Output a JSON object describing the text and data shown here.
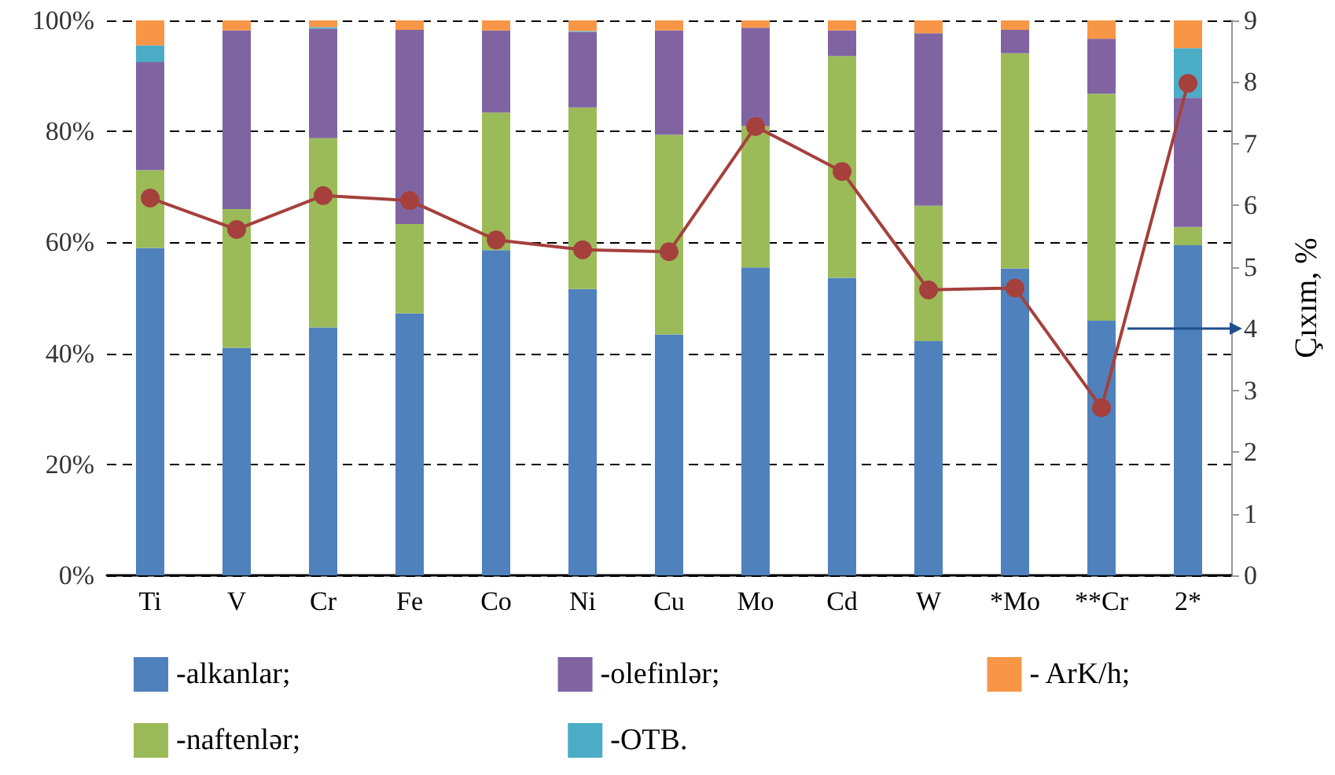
{
  "chart_data": {
    "type": "bar",
    "stacked": true,
    "y2label": "Çıxım, %",
    "categories": [
      "Ti",
      "V",
      "Cr",
      "Fe",
      "Co",
      "Ni",
      "Cu",
      "Mo",
      "Cd",
      "W",
      "*Mo",
      "**Cr",
      "2*"
    ],
    "series": [
      {
        "name": "-alkanlar;",
        "color": "#4f81bd",
        "values": [
          59,
          41,
          44.7,
          47.2,
          58.6,
          51.6,
          43.4,
          55.5,
          53.6,
          42.2,
          55.3,
          45.9,
          59.5
        ]
      },
      {
        "name": "-naftenlər;",
        "color": "#9bbb59",
        "values": [
          14,
          25,
          34.1,
          16.1,
          24.8,
          32.7,
          36,
          25.5,
          40,
          24.4,
          38.8,
          40.9,
          3.3
        ]
      },
      {
        "name": "-olefinlər;",
        "color": "#8064a2",
        "values": [
          19.5,
          32.2,
          19.7,
          35,
          14.8,
          13.6,
          18.8,
          17.7,
          4.6,
          31.1,
          4.2,
          9.9,
          23.3
        ]
      },
      {
        "name": "-OTB.",
        "color": "#4bacc6",
        "values": [
          3,
          0,
          0.3,
          0,
          0,
          0.2,
          0,
          0,
          0,
          0,
          0,
          0,
          8.9
        ]
      },
      {
        "name": "- ArK/h;",
        "color": "#f79646",
        "values": [
          4.5,
          1.8,
          1.2,
          1.7,
          1.8,
          1.9,
          1.8,
          1.3,
          1.8,
          2.3,
          1.7,
          3.3,
          5.0
        ]
      },
      {
        "type": "line",
        "axis": "y2",
        "color": "#a5403c",
        "marker": "circle",
        "values": [
          6.12,
          5.61,
          6.16,
          6.08,
          5.44,
          5.28,
          5.25,
          7.28,
          6.55,
          4.63,
          4.66,
          2.72,
          7.98
        ]
      }
    ],
    "ylim": [
      0,
      100
    ],
    "yticks": [
      {
        "value": 0,
        "label": "0%"
      },
      {
        "value": 20,
        "label": "20%"
      },
      {
        "value": 40,
        "label": "40%"
      },
      {
        "value": 60,
        "label": "60%"
      },
      {
        "value": 80,
        "label": "80%"
      },
      {
        "value": 100,
        "label": "100%"
      }
    ],
    "y2lim": [
      0,
      9
    ],
    "y2ticks": [
      0,
      1,
      2,
      3,
      4,
      5,
      6,
      7,
      8,
      9
    ],
    "grid": "y",
    "legend": "bottom"
  }
}
